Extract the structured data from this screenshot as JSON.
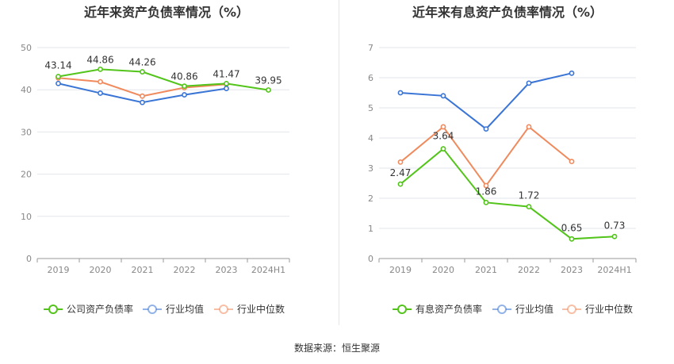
{
  "source_label": "数据来源：恒生聚源",
  "chart_data": [
    {
      "type": "line",
      "title": "近年来资产负债率情况（%）",
      "categories": [
        "2019",
        "2020",
        "2021",
        "2022",
        "2023",
        "2024H1"
      ],
      "ylim": [
        0,
        50
      ],
      "yticks": [
        0,
        10,
        20,
        30,
        40,
        50
      ],
      "grid": true,
      "legend_position": "bottom",
      "series": [
        {
          "name": "公司资产负债率",
          "color": "#52c41a",
          "values": [
            43.14,
            44.86,
            44.26,
            40.86,
            41.47,
            39.95
          ],
          "labels": [
            "43.14",
            "44.86",
            "44.26",
            "40.86",
            "41.47",
            "39.95"
          ]
        },
        {
          "name": "行业均值",
          "color": "#3a75d6",
          "values": [
            41.5,
            39.2,
            37.0,
            38.8,
            40.3,
            null
          ]
        },
        {
          "name": "行业中位数",
          "color": "#f08a5d",
          "values": [
            42.8,
            41.9,
            38.5,
            40.5,
            41.3,
            null
          ]
        }
      ]
    },
    {
      "type": "line",
      "title": "近年来有息资产负债率情况（%）",
      "categories": [
        "2019",
        "2020",
        "2021",
        "2022",
        "2023",
        "2024H1"
      ],
      "ylim": [
        0,
        7
      ],
      "yticks": [
        0,
        1,
        2,
        3,
        4,
        5,
        6,
        7
      ],
      "grid": true,
      "legend_position": "bottom",
      "series": [
        {
          "name": "有息资产负债率",
          "color": "#52c41a",
          "values": [
            2.47,
            3.64,
            1.86,
            1.72,
            0.65,
            0.73
          ],
          "labels": [
            "2.47",
            "3.64",
            "1.86",
            "1.72",
            "0.65",
            "0.73"
          ]
        },
        {
          "name": "行业均值",
          "color": "#3a75d6",
          "values": [
            5.5,
            5.4,
            4.3,
            5.82,
            6.15,
            null
          ]
        },
        {
          "name": "行业中位数",
          "color": "#f08a5d",
          "values": [
            3.2,
            4.37,
            2.42,
            4.37,
            3.22,
            null
          ]
        }
      ]
    }
  ]
}
